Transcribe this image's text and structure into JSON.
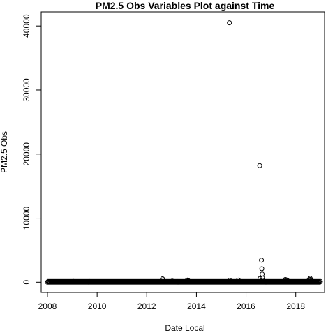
{
  "chart_data": {
    "type": "scatter",
    "title": "PM2.5 Obs Variables Plot against Time",
    "xlabel": "Date Local",
    "ylabel": "PM2.5 Obs",
    "x_ticks": [
      "2008",
      "2010",
      "2012",
      "2014",
      "2016",
      "2018"
    ],
    "y_ticks": [
      "0",
      "10000",
      "20000",
      "30000",
      "40000"
    ],
    "xlim": [
      "2007-10-01",
      "2019-03-01"
    ],
    "ylim": [
      -1600,
      42200
    ],
    "grid": false,
    "legend": "none",
    "marker": "open-circle",
    "dense_band": {
      "x_from": "2008-01-01",
      "x_to": "2018-12-31",
      "y_min": 0,
      "y_max": 150
    },
    "points": [
      {
        "x": "2009-01-15",
        "y": 120
      },
      {
        "x": "2012-08-20",
        "y": 520
      },
      {
        "x": "2012-08-25",
        "y": 350
      },
      {
        "x": "2013-01-10",
        "y": 180
      },
      {
        "x": "2013-08-15",
        "y": 250
      },
      {
        "x": "2013-08-25",
        "y": 340
      },
      {
        "x": "2013-09-05",
        "y": 200
      },
      {
        "x": "2015-05-01",
        "y": 40500
      },
      {
        "x": "2015-05-05",
        "y": 300
      },
      {
        "x": "2015-09-10",
        "y": 320
      },
      {
        "x": "2016-07-20",
        "y": 18200
      },
      {
        "x": "2016-07-25",
        "y": 580
      },
      {
        "x": "2016-08-15",
        "y": 3450
      },
      {
        "x": "2016-08-20",
        "y": 2100
      },
      {
        "x": "2016-08-25",
        "y": 1250
      },
      {
        "x": "2016-08-28",
        "y": 650
      },
      {
        "x": "2016-09-01",
        "y": 300
      },
      {
        "x": "2017-08-01",
        "y": 420
      },
      {
        "x": "2017-08-10",
        "y": 370
      },
      {
        "x": "2017-08-20",
        "y": 300
      },
      {
        "x": "2017-09-01",
        "y": 250
      },
      {
        "x": "2018-07-20",
        "y": 450
      },
      {
        "x": "2018-08-01",
        "y": 600
      },
      {
        "x": "2018-08-10",
        "y": 380
      },
      {
        "x": "2018-08-20",
        "y": 300
      }
    ]
  }
}
